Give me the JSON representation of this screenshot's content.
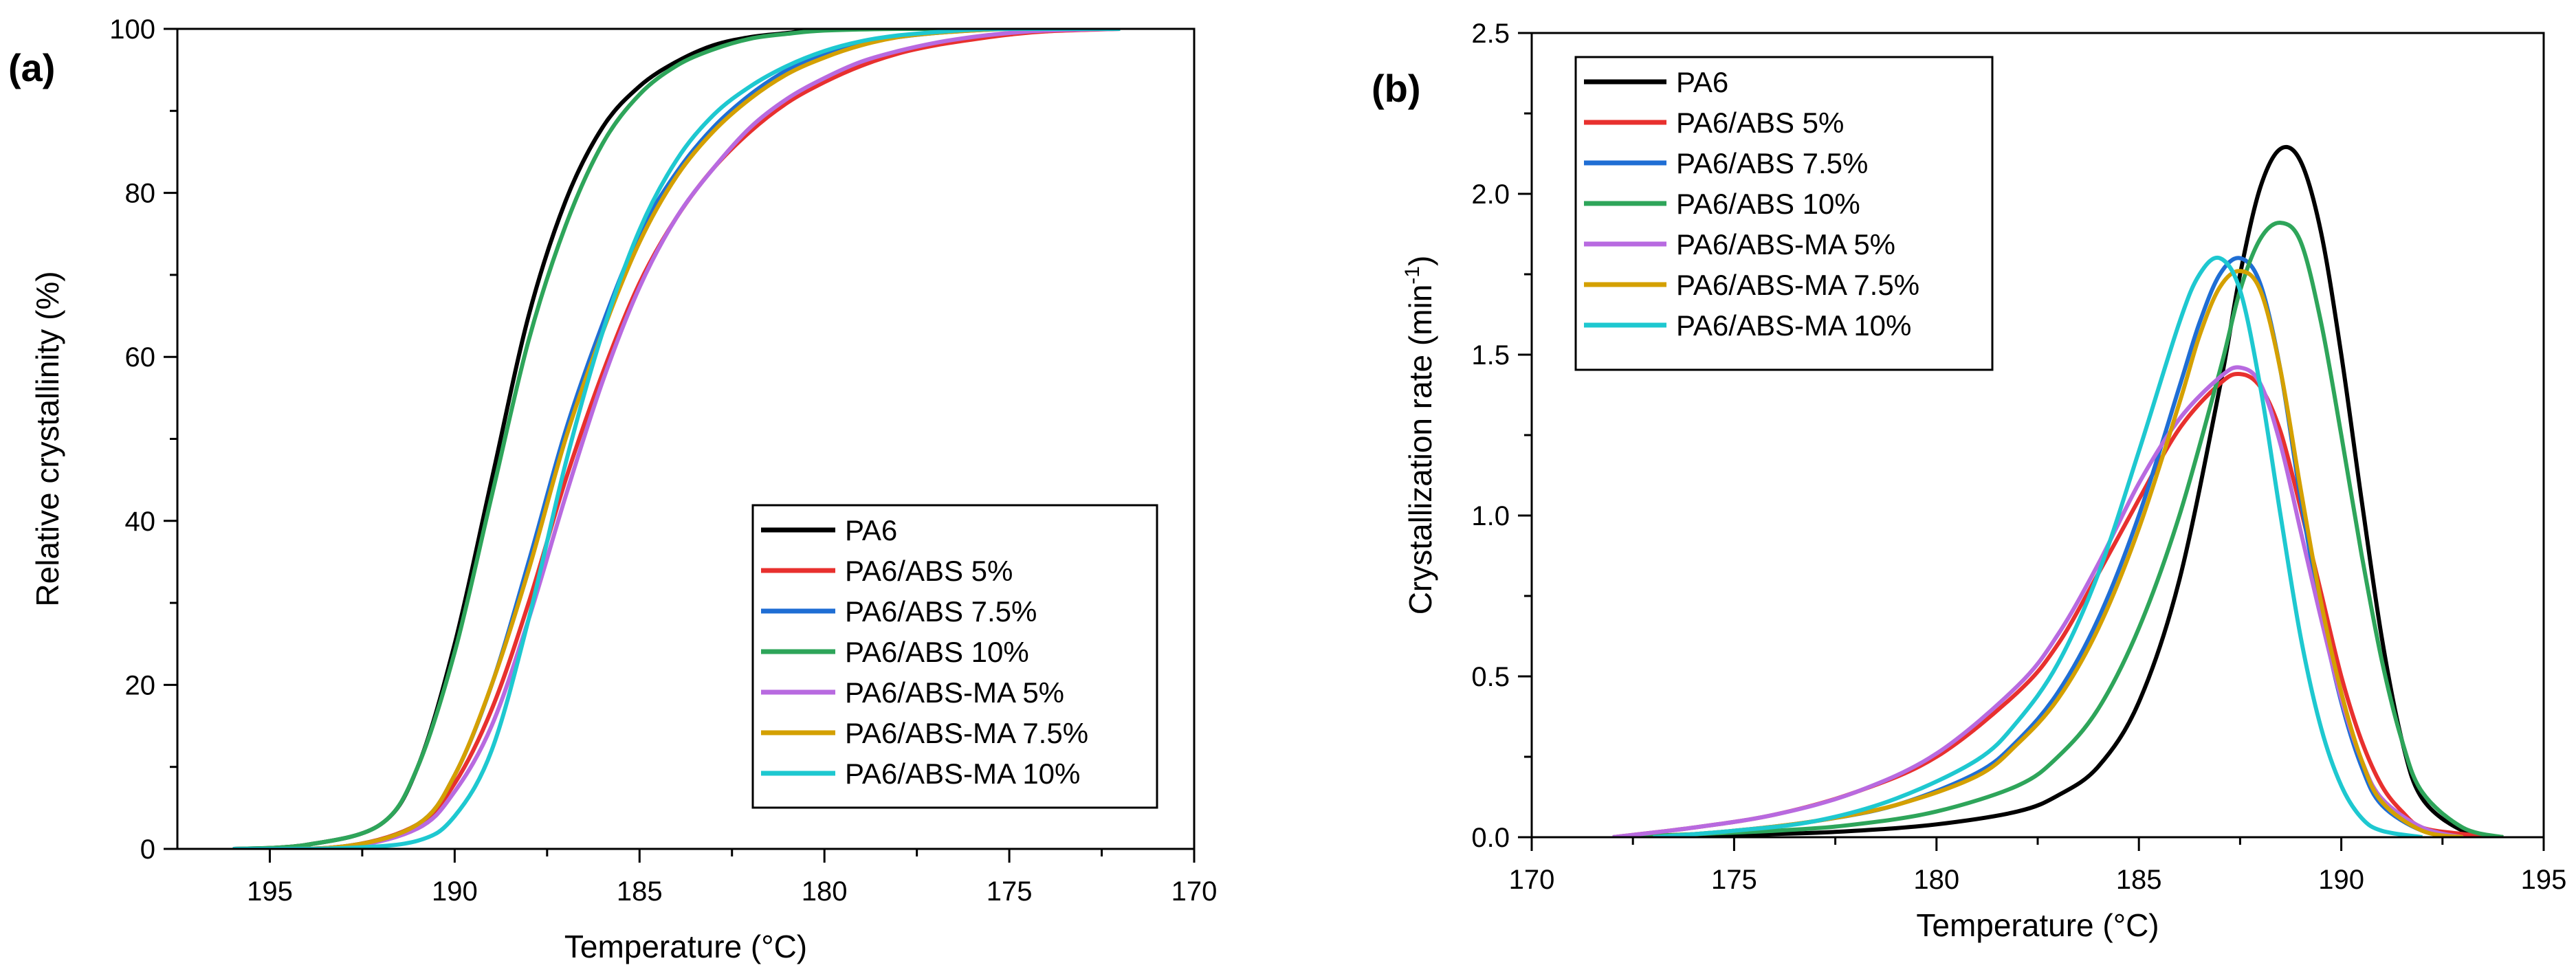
{
  "chart_data": [
    {
      "type": "line",
      "panel_label": "(a)",
      "xlabel": "Temperature (°C)",
      "ylabel": "Relative crystallinity (%)",
      "xlim": [
        197.5,
        170
      ],
      "ylim": [
        0,
        100
      ],
      "x_reversed": true,
      "xticks": [
        195,
        190,
        185,
        180,
        175,
        170
      ],
      "yticks": [
        0,
        20,
        40,
        60,
        80,
        100
      ],
      "legend_position": "bottom-right",
      "series": [
        {
          "name": "PA6",
          "color": "#000000",
          "x": [
            196,
            194,
            192,
            191,
            190,
            189,
            188,
            187,
            186,
            185,
            184,
            183,
            182,
            181,
            180,
            178,
            176,
            174,
            172
          ],
          "y": [
            0,
            0.5,
            3,
            10,
            25,
            45,
            65,
            79,
            88,
            93,
            96,
            98,
            99,
            99.5,
            100,
            100,
            100,
            100,
            100
          ]
        },
        {
          "name": "PA6/ABS 5%",
          "color": "#e8302e",
          "x": [
            196,
            193,
            191,
            190,
            189,
            188,
            187,
            186,
            185,
            184,
            183,
            182,
            181,
            180,
            179,
            178,
            177,
            176,
            175,
            174,
            172
          ],
          "y": [
            0,
            0.3,
            3,
            8,
            17,
            30,
            45,
            58,
            69,
            77,
            83,
            87.5,
            91,
            93.5,
            95.5,
            97,
            98,
            98.7,
            99.3,
            99.7,
            100
          ]
        },
        {
          "name": "PA6/ABS 7.5%",
          "color": "#1f6ed4",
          "x": [
            196,
            193,
            191,
            190,
            189,
            188,
            187,
            186,
            185,
            184,
            183,
            182,
            181,
            180,
            179,
            178,
            177,
            176,
            175,
            174,
            172
          ],
          "y": [
            0,
            0.3,
            3,
            9,
            20,
            35,
            51,
            64,
            75,
            82.5,
            88,
            92,
            95,
            97,
            98.3,
            99,
            99.5,
            99.8,
            100,
            100,
            100
          ]
        },
        {
          "name": "PA6/ABS 10%",
          "color": "#2ea55a",
          "x": [
            196,
            194,
            192,
            191,
            190,
            189,
            188,
            187,
            186,
            185,
            184,
            183,
            182,
            181,
            180,
            178,
            176,
            174,
            172
          ],
          "y": [
            0,
            0.5,
            3,
            10,
            24,
            43,
            62,
            76,
            86,
            92,
            95.5,
            97.5,
            98.8,
            99.4,
            99.8,
            100,
            100,
            100,
            100
          ]
        },
        {
          "name": "PA6/ABS-MA 5%",
          "color": "#b86ae0",
          "x": [
            196,
            193,
            191,
            190,
            189,
            188,
            187,
            186,
            185,
            184,
            183,
            182,
            181,
            180,
            179,
            178,
            177,
            176,
            175,
            174,
            172
          ],
          "y": [
            0,
            0.2,
            2.5,
            7,
            15,
            28,
            43,
            57,
            68.5,
            77,
            83,
            88,
            91.5,
            94,
            96,
            97.3,
            98.3,
            99,
            99.5,
            99.8,
            100
          ]
        },
        {
          "name": "PA6/ABS-MA 7.5%",
          "color": "#d4a000",
          "x": [
            196,
            193,
            191,
            190,
            189,
            188,
            187,
            186,
            185,
            184,
            183,
            182,
            181,
            180,
            179,
            178,
            177,
            176,
            175,
            174,
            172
          ],
          "y": [
            0,
            0.3,
            3,
            9,
            20,
            34,
            50,
            63,
            74,
            82,
            87.5,
            91.5,
            94.5,
            96.5,
            98,
            99,
            99.5,
            99.8,
            100,
            100,
            100
          ]
        },
        {
          "name": "PA6/ABS-MA 10%",
          "color": "#1ec8d0",
          "x": [
            196,
            193,
            191,
            190,
            189,
            188,
            187,
            186,
            185,
            184,
            183,
            182,
            181,
            180,
            179,
            178,
            177,
            176,
            175,
            174,
            172
          ],
          "y": [
            0,
            0.1,
            1,
            4,
            12,
            28,
            47,
            63,
            75.5,
            84,
            89.5,
            93,
            95.5,
            97.3,
            98.5,
            99.2,
            99.6,
            99.9,
            100,
            100,
            100
          ]
        }
      ]
    },
    {
      "type": "line",
      "panel_label": "(b)",
      "xlabel": "Temperature (°C)",
      "ylabel": "Crystallization rate (min",
      "ylabel_sup": "-1",
      "ylabel_close": ")",
      "xlim": [
        170,
        195
      ],
      "ylim": [
        0,
        2.5
      ],
      "x_reversed": false,
      "xticks": [
        170,
        175,
        180,
        185,
        190,
        195
      ],
      "yticks": [
        0.0,
        0.5,
        1.0,
        1.5,
        2.0,
        2.5
      ],
      "ytick_labels": [
        "0.0",
        "0.5",
        "1.0",
        "1.5",
        "2.0",
        "2.5"
      ],
      "legend_position": "top-left",
      "series": [
        {
          "name": "PA6",
          "color": "#000000",
          "x": [
            172,
            176,
            178,
            180,
            182,
            183,
            184,
            185,
            186,
            187,
            187.5,
            188,
            188.5,
            189,
            189.5,
            190,
            190.5,
            191,
            191.5,
            192,
            193,
            194
          ],
          "y": [
            0,
            0.01,
            0.02,
            0.04,
            0.08,
            0.13,
            0.22,
            0.42,
            0.8,
            1.4,
            1.75,
            2.02,
            2.14,
            2.1,
            1.88,
            1.5,
            1.05,
            0.62,
            0.3,
            0.12,
            0.02,
            0
          ]
        },
        {
          "name": "PA6/ABS 5%",
          "color": "#e8302e",
          "x": [
            172,
            174,
            176,
            178,
            180,
            182,
            183,
            184,
            185,
            186,
            187,
            187.5,
            188,
            188.5,
            189,
            189.5,
            190,
            190.5,
            191,
            191.5,
            192,
            193,
            194
          ],
          "y": [
            0,
            0.03,
            0.07,
            0.14,
            0.25,
            0.45,
            0.6,
            0.82,
            1.05,
            1.27,
            1.41,
            1.44,
            1.4,
            1.26,
            1.02,
            0.76,
            0.5,
            0.3,
            0.16,
            0.08,
            0.03,
            0.01,
            0
          ]
        },
        {
          "name": "PA6/ABS 7.5%",
          "color": "#1f6ed4",
          "x": [
            173,
            175,
            177,
            179,
            181,
            182,
            183,
            184,
            185,
            186,
            186.5,
            187,
            187.5,
            188,
            188.5,
            189,
            189.5,
            190,
            190.5,
            191,
            192,
            193
          ],
          "y": [
            0,
            0.02,
            0.05,
            0.1,
            0.2,
            0.3,
            0.45,
            0.68,
            1.0,
            1.4,
            1.6,
            1.75,
            1.8,
            1.72,
            1.45,
            1.05,
            0.7,
            0.42,
            0.22,
            0.1,
            0.02,
            0
          ]
        },
        {
          "name": "PA6/ABS 10%",
          "color": "#2ea55a",
          "x": [
            172,
            176,
            178,
            180,
            182,
            183,
            184,
            185,
            186,
            187,
            187.5,
            188,
            188.5,
            189,
            189.5,
            190,
            190.5,
            191,
            191.5,
            192,
            193,
            194
          ],
          "y": [
            0,
            0.02,
            0.04,
            0.08,
            0.16,
            0.25,
            0.4,
            0.65,
            1.0,
            1.45,
            1.7,
            1.86,
            1.91,
            1.85,
            1.6,
            1.25,
            0.88,
            0.55,
            0.3,
            0.14,
            0.03,
            0
          ]
        },
        {
          "name": "PA6/ABS-MA 5%",
          "color": "#b86ae0",
          "x": [
            172,
            174,
            176,
            178,
            180,
            182,
            183,
            184,
            185,
            186,
            187,
            187.5,
            188,
            188.5,
            189,
            189.5,
            190,
            190.5,
            191,
            192,
            193
          ],
          "y": [
            0,
            0.03,
            0.07,
            0.14,
            0.26,
            0.47,
            0.63,
            0.85,
            1.1,
            1.3,
            1.43,
            1.46,
            1.41,
            1.22,
            0.95,
            0.68,
            0.43,
            0.24,
            0.12,
            0.03,
            0
          ]
        },
        {
          "name": "PA6/ABS-MA 7.5%",
          "color": "#d4a000",
          "x": [
            173,
            175,
            177,
            179,
            181,
            182,
            183,
            184,
            185,
            186,
            186.5,
            187,
            187.5,
            188,
            188.5,
            189,
            189.5,
            190,
            190.5,
            191,
            192,
            193
          ],
          "y": [
            0,
            0.02,
            0.05,
            0.1,
            0.19,
            0.29,
            0.43,
            0.65,
            0.96,
            1.35,
            1.56,
            1.71,
            1.76,
            1.7,
            1.45,
            1.08,
            0.73,
            0.45,
            0.24,
            0.11,
            0.02,
            0
          ]
        },
        {
          "name": "PA6/ABS-MA 10%",
          "color": "#1ec8d0",
          "x": [
            173,
            175,
            177,
            179,
            181,
            182,
            183,
            184,
            185,
            186,
            186.5,
            187,
            187.5,
            188,
            188.5,
            189,
            189.5,
            190,
            190.5,
            191,
            192
          ],
          "y": [
            0,
            0.02,
            0.05,
            0.12,
            0.24,
            0.36,
            0.54,
            0.82,
            1.2,
            1.6,
            1.75,
            1.8,
            1.7,
            1.4,
            1.0,
            0.62,
            0.34,
            0.16,
            0.06,
            0.02,
            0
          ]
        }
      ]
    }
  ]
}
